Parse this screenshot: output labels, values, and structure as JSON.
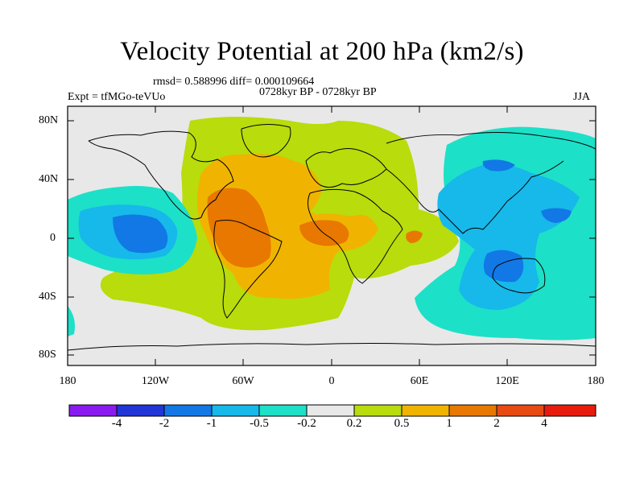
{
  "title": "Velocity Potential at 200 hPa (km2/s)",
  "stats": "rmsd= 0.588996 diff= 0.000109664",
  "period": "0728kyr BP - 0728kyr BP",
  "experiment": "Expt = tfMGo-teVUo",
  "season": "JJA",
  "y_ticks": [
    "80N",
    "40N",
    "0",
    "40S",
    "80S"
  ],
  "x_ticks": [
    "180",
    "120W",
    "60W",
    "0",
    "60E",
    "120E",
    "180"
  ],
  "colorbar": {
    "labels": [
      "-4",
      "-2",
      "-1",
      "-0.5",
      "-0.2",
      "0.2",
      "0.5",
      "1",
      "2",
      "4"
    ],
    "colors": [
      "#8a1bf0",
      "#2135d8",
      "#1278e6",
      "#16b9ea",
      "#1de0c8",
      "#e8e8e8",
      "#b8dc0c",
      "#f0b400",
      "#e87800",
      "#e84a12",
      "#e81c0c"
    ]
  },
  "field_colors": {
    "background": "#e8e8e8",
    "neg_weak": "#1de0c8",
    "neg_mid": "#16b9ea",
    "neg_strong": "#1278e6",
    "pos_weak": "#b8dc0c",
    "pos_mid": "#f0b400",
    "pos_strong": "#e87800",
    "coast": "#000000"
  }
}
